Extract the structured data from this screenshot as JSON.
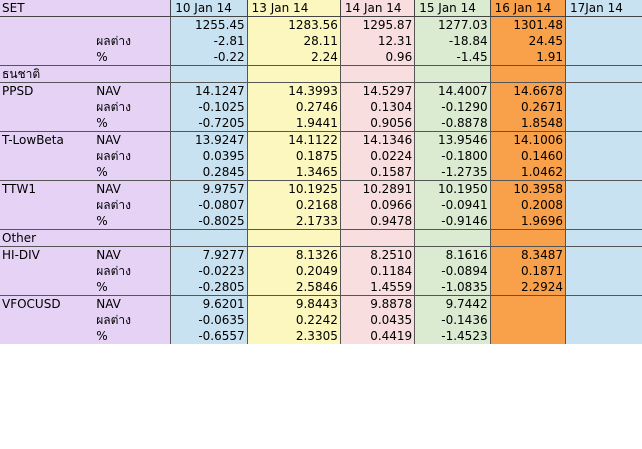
{
  "header": {
    "set_label": "SET",
    "dates": [
      "10 Jan  14",
      "13 Jan 14",
      "14 Jan 14",
      "15 Jan 14",
      "16 Jan 14",
      "17Jan 14"
    ]
  },
  "labels": {
    "nav": "NAV",
    "change": "ผลต่าง",
    "percent": "%"
  },
  "set_rows": {
    "index": [
      "1255.45",
      "1283.56",
      "1295.87",
      "1277.03",
      "1301.48",
      ""
    ],
    "change": [
      "-2.81",
      "28.11",
      "12.31",
      "-18.84",
      "24.45",
      ""
    ],
    "percent": [
      "-0.22",
      "2.24",
      "0.96",
      "-1.45",
      "1.91",
      ""
    ]
  },
  "sections": {
    "thai": "ธนชาติ",
    "other": "Other"
  },
  "funds": [
    {
      "name": "PPSD",
      "nav": [
        "14.1247",
        "14.3993",
        "14.5297",
        "14.4007",
        "14.6678",
        ""
      ],
      "change": [
        "-0.1025",
        "0.2746",
        "0.1304",
        "-0.1290",
        "0.2671",
        ""
      ],
      "percent": [
        "-0.7205",
        "1.9441",
        "0.9056",
        "-0.8878",
        "1.8548",
        ""
      ]
    },
    {
      "name": "T-LowBeta",
      "nav": [
        "13.9247",
        "14.1122",
        "14.1346",
        "13.9546",
        "14.1006",
        ""
      ],
      "change": [
        "0.0395",
        "0.1875",
        "0.0224",
        "-0.1800",
        "0.1460",
        ""
      ],
      "percent": [
        "0.2845",
        "1.3465",
        "0.1587",
        "-1.2735",
        "1.0462",
        ""
      ]
    },
    {
      "name": "TTW1",
      "nav": [
        "9.9757",
        "10.1925",
        "10.2891",
        "10.1950",
        "10.3958",
        ""
      ],
      "change": [
        "-0.0807",
        "0.2168",
        "0.0966",
        "-0.0941",
        "0.2008",
        ""
      ],
      "percent": [
        "-0.8025",
        "2.1733",
        "0.9478",
        "-0.9146",
        "1.9696",
        ""
      ]
    },
    {
      "name": "HI-DIV",
      "nav": [
        "7.9277",
        "8.1326",
        "8.2510",
        "8.1616",
        "8.3487",
        ""
      ],
      "change": [
        "-0.0223",
        "0.2049",
        "0.1184",
        "-0.0894",
        "0.1871",
        ""
      ],
      "percent": [
        "-0.2805",
        "2.5846",
        "1.4559",
        "-1.0835",
        "2.2924",
        ""
      ]
    },
    {
      "name": "VFOCUSD",
      "nav": [
        "9.6201",
        "9.8443",
        "9.8878",
        "9.7442",
        "",
        ""
      ],
      "change": [
        "-0.0635",
        "0.2242",
        "0.0435",
        "-0.1436",
        "",
        ""
      ],
      "percent": [
        "-0.6557",
        "2.3305",
        "0.4419",
        "-1.4523",
        "",
        ""
      ]
    }
  ],
  "colors": {
    "label_bg": "#e5d2f5",
    "jan10": "#c9e2f2",
    "jan13": "#fbf7be",
    "jan14": "#f8dede",
    "jan15": "#dbebd2",
    "jan16": "#f9a04a",
    "jan17": "#c9e2f2"
  }
}
